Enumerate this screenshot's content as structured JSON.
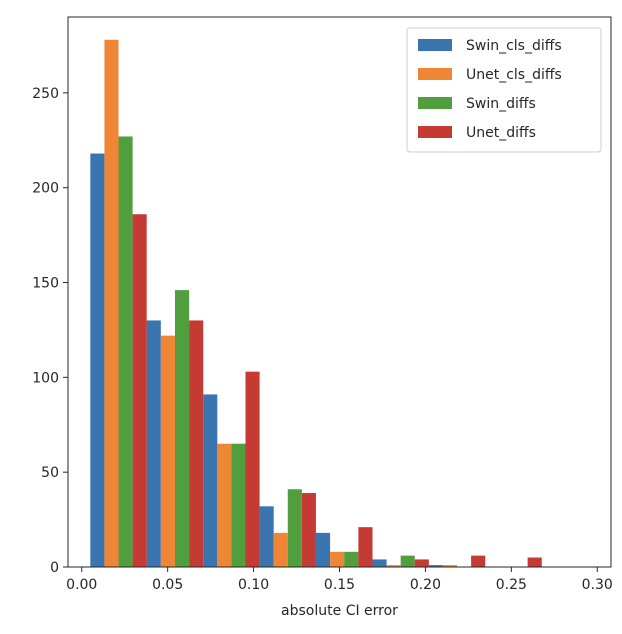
{
  "chart_data": {
    "type": "bar",
    "subtype": "grouped-histogram",
    "xlabel": "absolute CI error",
    "ylabel": "",
    "xlim": [
      -0.008,
      0.308
    ],
    "ylim": [
      0,
      290
    ],
    "xticks": [
      0.0,
      0.05,
      0.1,
      0.15,
      0.2,
      0.25,
      0.3
    ],
    "xtick_labels": [
      "0.00",
      "0.05",
      "0.10",
      "0.15",
      "0.20",
      "0.25",
      "0.30"
    ],
    "yticks": [
      0,
      50,
      100,
      150,
      200,
      250
    ],
    "ytick_labels": [
      "0",
      "50",
      "100",
      "150",
      "200",
      "250"
    ],
    "bin_edges": [
      0.005,
      0.0378,
      0.0707,
      0.1035,
      0.1363,
      0.1692,
      0.202,
      0.2348,
      0.2677,
      0.3005
    ],
    "legend": "top-right",
    "grid": false,
    "series": [
      {
        "name": "Swin_cls_diffs",
        "color": "#3b75af",
        "values": [
          218,
          130,
          91,
          32,
          18,
          4,
          1,
          0,
          0
        ]
      },
      {
        "name": "Unet_cls_diffs",
        "color": "#ef8636",
        "values": [
          278,
          122,
          65,
          18,
          8,
          1,
          1,
          0,
          0
        ]
      },
      {
        "name": "Swin_diffs",
        "color": "#519e3e",
        "values": [
          227,
          146,
          65,
          41,
          8,
          6,
          0,
          0,
          0
        ]
      },
      {
        "name": "Unet_diffs",
        "color": "#c53a32",
        "values": [
          186,
          130,
          103,
          39,
          21,
          4,
          6,
          5,
          0
        ]
      }
    ]
  }
}
